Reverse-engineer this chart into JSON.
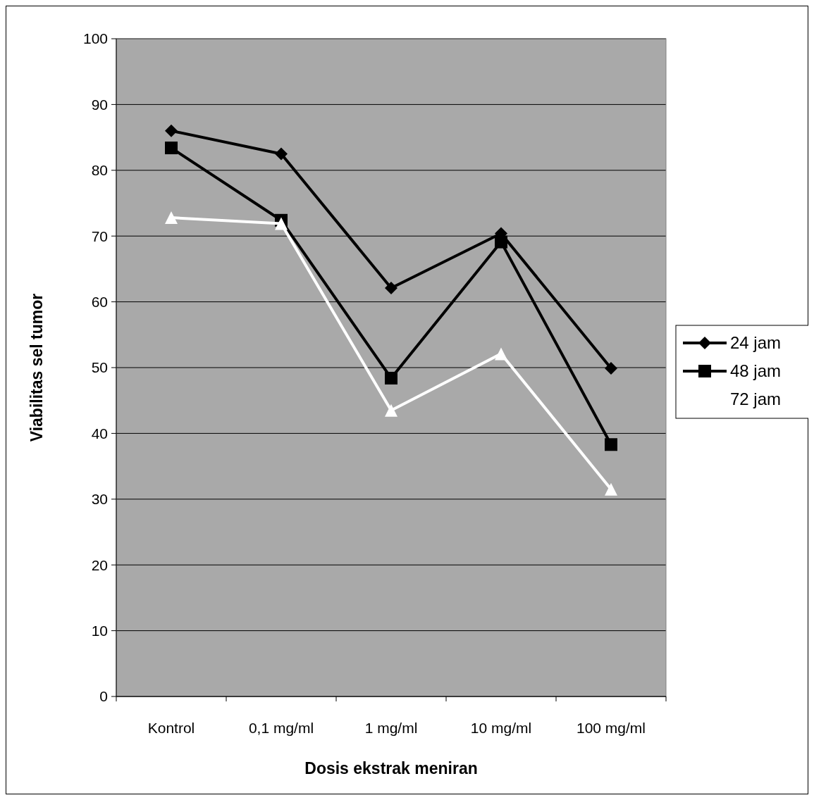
{
  "chart_data": {
    "type": "line",
    "xlabel": "Dosis ekstrak meniran",
    "ylabel": "Viabilitas sel tumor",
    "categories": [
      "Kontrol",
      "0,1 mg/ml",
      "1 mg/ml",
      "10 mg/ml",
      "100 mg/ml"
    ],
    "series": [
      {
        "name": "24 jam",
        "color": "#000000",
        "marker": "diamond",
        "values": [
          86.0,
          82.5,
          62.1,
          70.4,
          49.9
        ]
      },
      {
        "name": "48 jam",
        "color": "#000000",
        "marker": "square",
        "values": [
          83.4,
          72.4,
          48.4,
          69.1,
          38.3
        ]
      },
      {
        "name": "72 jam",
        "color": "#ffffff",
        "marker": "triangle",
        "values": [
          72.8,
          71.9,
          43.5,
          52.1,
          31.5
        ]
      }
    ],
    "ylim": [
      0,
      100
    ],
    "yticks": [
      0,
      10,
      20,
      30,
      40,
      50,
      60,
      70,
      80,
      90,
      100
    ],
    "grid": "y",
    "legend": "right"
  }
}
